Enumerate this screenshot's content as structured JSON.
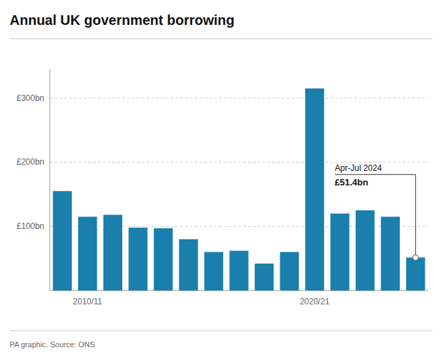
{
  "chart_data": {
    "type": "bar",
    "title": "Annual UK government borrowing",
    "subtitle": "PA graphic. Source: ONS",
    "categories": [
      null,
      "2010/11",
      null,
      null,
      null,
      null,
      null,
      null,
      null,
      null,
      "2020/21",
      null,
      null,
      null,
      null
    ],
    "values": [
      155,
      115,
      118,
      98,
      97,
      80,
      60,
      62,
      42,
      60,
      315,
      120,
      125,
      115,
      51.4
    ],
    "color": "#1a7fad",
    "ylim": [
      0,
      345
    ],
    "yticks": [
      {
        "value": 100,
        "label": "£100bn"
      },
      {
        "value": 200,
        "label": "£200bn"
      },
      {
        "value": 300,
        "label": "£300bn"
      }
    ],
    "grid": true,
    "annotations": [
      {
        "text": "Apr-Jul 2024",
        "label": "£51.4bn",
        "value": 51.4
      }
    ]
  }
}
